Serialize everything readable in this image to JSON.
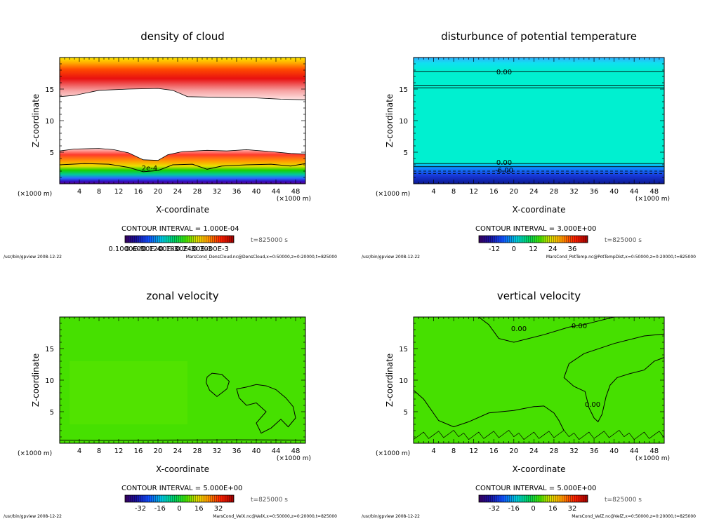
{
  "chart_data": [
    {
      "type": "heatmap",
      "title": "density of cloud",
      "xlabel": "X-coordinate",
      "ylabel": "Z-coordinate",
      "x_unit_left": "(×1000 m)",
      "x_unit_right": "(×1000 m)",
      "xlim": [
        0,
        50
      ],
      "ylim": [
        0,
        20
      ],
      "xticks": [
        "4",
        "8",
        "12",
        "16",
        "20",
        "24",
        "28",
        "32",
        "36",
        "40",
        "44",
        "48"
      ],
      "yticks": [
        "5",
        "10",
        "15"
      ],
      "contour_interval": "CONTOUR INTERVAL = 1.000E-04",
      "time": "t=825000 s",
      "colorbar_labels": [
        "0.1000E-5",
        "0.6000E-4",
        "0.1200E-3",
        "0.1800E-3",
        "0.2400E-3",
        "0.3000E-3"
      ],
      "contour_labels": [
        "2e-4"
      ],
      "footer_left": "/usr/bin/gpview   2008-12-22",
      "footer_right": "MarsCond_DensCloud.nc@DensCloud,x=0:50000,z=0:20000,t=825000"
    },
    {
      "type": "heatmap",
      "title": "disturbunce of potential temperature",
      "xlabel": "X-coordinate",
      "ylabel": "Z-coordinate",
      "x_unit_left": "(×1000 m)",
      "x_unit_right": "(×1000 m)",
      "xlim": [
        0,
        50
      ],
      "ylim": [
        0,
        20
      ],
      "xticks": [
        "4",
        "8",
        "12",
        "16",
        "20",
        "24",
        "28",
        "32",
        "36",
        "40",
        "44",
        "48"
      ],
      "yticks": [
        "5",
        "10",
        "15"
      ],
      "contour_interval": "CONTOUR INTERVAL = 3.000E+00",
      "time": "t=825000 s",
      "colorbar_labels": [
        "-12",
        "0",
        "12",
        "24",
        "36"
      ],
      "contour_labels": [
        "0.00",
        "0.00",
        "-6.00"
      ],
      "footer_left": "/usr/bin/gpview   2008-12-22",
      "footer_right": "MarsCond_PotTemp.nc@PotTempDist,x=0:50000,z=0:20000,t=825000"
    },
    {
      "type": "heatmap",
      "title": "zonal velocity",
      "xlabel": "X-coordinate",
      "ylabel": "Z-coordinate",
      "x_unit_left": "(×1000 m)",
      "x_unit_right": "(×1000 m)",
      "xlim": [
        0,
        50
      ],
      "ylim": [
        0,
        20
      ],
      "xticks": [
        "4",
        "8",
        "12",
        "16",
        "20",
        "24",
        "28",
        "32",
        "36",
        "40",
        "44",
        "48"
      ],
      "yticks": [
        "5",
        "10",
        "15"
      ],
      "contour_interval": "CONTOUR INTERVAL = 5.000E+00",
      "time": "t=825000 s",
      "colorbar_labels": [
        "-32",
        "-16",
        "0",
        "16",
        "32"
      ],
      "contour_labels": [],
      "footer_left": "/usr/bin/gpview   2008-12-22",
      "footer_right": "MarsCond_VelX.nc@VelX,x=0:50000,z=0:20000,t=825000"
    },
    {
      "type": "heatmap",
      "title": "vertical velocity",
      "xlabel": "X-coordinate",
      "ylabel": "Z-coordinate",
      "x_unit_left": "(×1000 m)",
      "x_unit_right": "(×1000 m)",
      "xlim": [
        0,
        50
      ],
      "ylim": [
        0,
        20
      ],
      "xticks": [
        "4",
        "8",
        "12",
        "16",
        "20",
        "24",
        "28",
        "32",
        "36",
        "40",
        "44",
        "48"
      ],
      "yticks": [
        "5",
        "10",
        "15"
      ],
      "contour_interval": "CONTOUR INTERVAL = 5.000E+00",
      "time": "t=825000 s",
      "colorbar_labels": [
        "-32",
        "-16",
        "0",
        "16",
        "32"
      ],
      "contour_labels": [
        "0.00",
        "0.00",
        "0.00"
      ],
      "footer_left": "/usr/bin/gpview   2008-12-22",
      "footer_right": "MarsCond_VelZ.nc@VelZ,x=0:50000,z=0:20000,t=825000"
    }
  ]
}
